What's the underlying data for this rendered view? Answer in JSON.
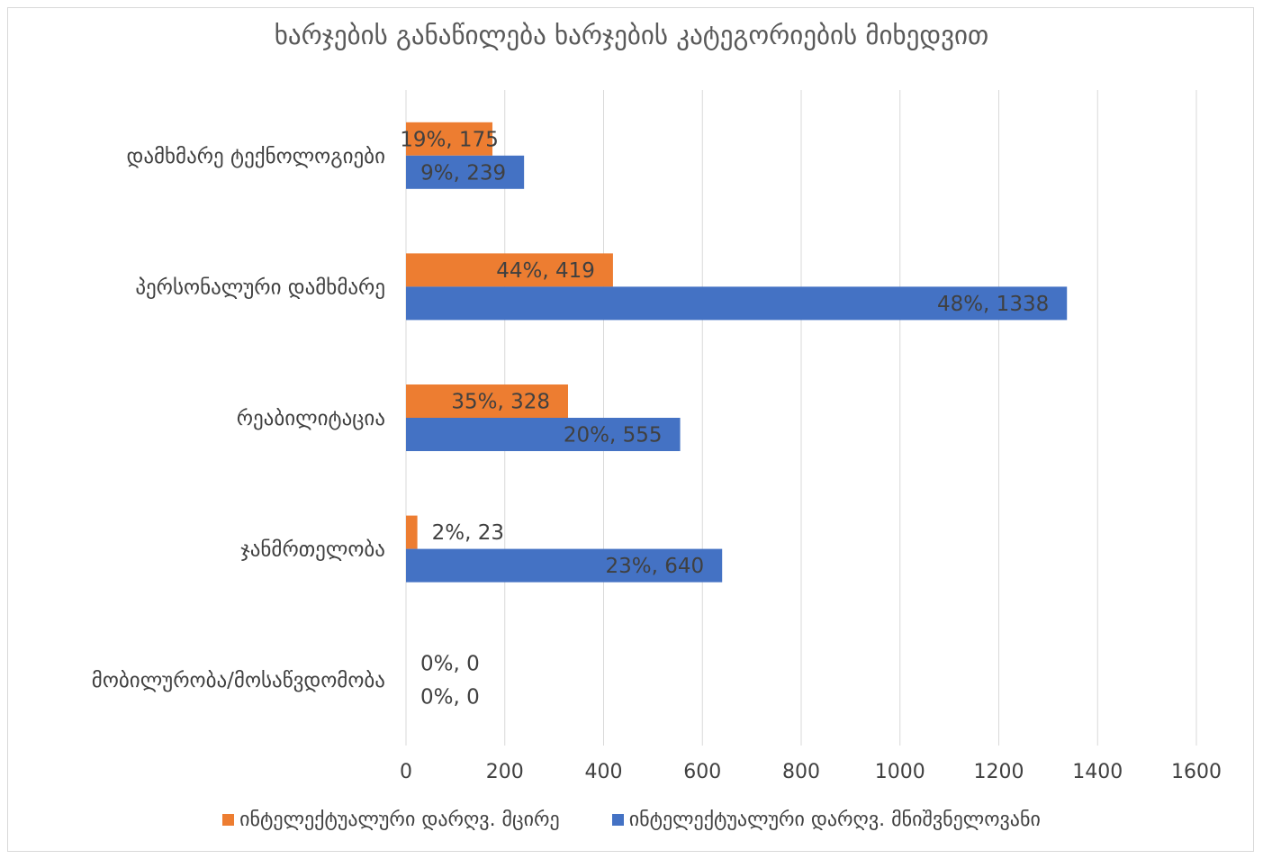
{
  "chart_data": {
    "type": "bar",
    "orientation": "horizontal",
    "title": "ხარჯების განაწილება ხარჯების კატეგორიების მიხედვით",
    "categories": [
      "დამხმარე ტექნოლოგიები",
      "პერსონალური დამხმარე",
      "რეაბილიტაცია",
      "ჯანმრთელობა",
      "მობილურობა/მოსაწვდომობა"
    ],
    "series": [
      {
        "name": "ინტელექტუალური დარღვ. მცირე",
        "color": "#ed7d31",
        "values": [
          175,
          419,
          328,
          23,
          0
        ],
        "labels": [
          "19%, 175",
          "44%, 419",
          "35%, 328",
          "2%, 23",
          "0%, 0"
        ]
      },
      {
        "name": "ინტელექტუალური დარღვ. მნიშვნელოვანი",
        "color": "#4472c4",
        "values": [
          239,
          1338,
          555,
          640,
          0
        ],
        "labels": [
          "9%, 239",
          "48%, 1338",
          "20%, 555",
          "23%, 640",
          "0%, 0"
        ]
      }
    ],
    "xlim": [
      0,
      1600
    ],
    "xticks": [
      "0",
      "200",
      "400",
      "600",
      "800",
      "1000",
      "1200",
      "1400",
      "1600"
    ],
    "grid": true,
    "legend_position": "bottom"
  }
}
